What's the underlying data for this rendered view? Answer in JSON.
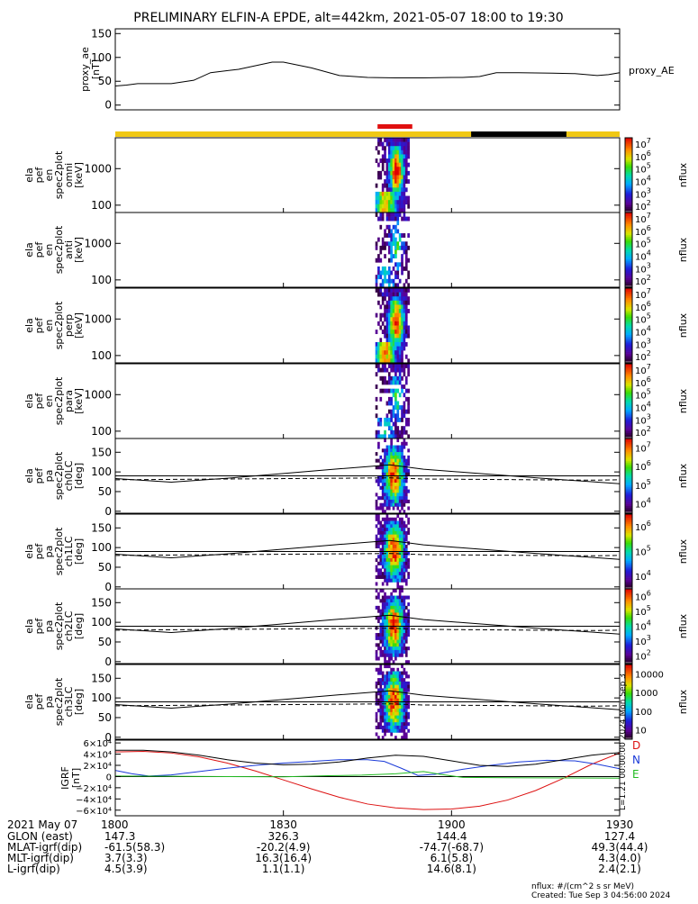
{
  "title": "PRELIMINARY ELFIN-A EPDE, alt=442km, 2021-05-07 18:00 to 19:30",
  "colors": {
    "sun_bar": "#f0c814",
    "shadow_bar": "#000000",
    "science_bar": "#e01010",
    "igrf_d": "#dd1111",
    "igrf_n": "#1a3ad8",
    "igrf_e": "#22bb22"
  },
  "chart_data": [
    {
      "type": "line",
      "name": "proxy_ae",
      "ylabel": [
        "proxy_ae",
        "[nT]"
      ],
      "series_label": "proxy_AE",
      "ylim": [
        -10,
        160
      ],
      "yticks": [
        0,
        50,
        100,
        150
      ],
      "x_minutes": [
        0,
        2,
        4,
        10,
        14,
        17,
        22,
        28,
        30,
        35,
        40,
        45,
        50,
        55,
        60,
        62,
        65,
        68,
        72,
        78,
        82,
        86,
        88,
        90
      ],
      "values": [
        40,
        42,
        45,
        45,
        52,
        68,
        75,
        90,
        90,
        78,
        62,
        58,
        57,
        57,
        58,
        58,
        60,
        68,
        68,
        67,
        66,
        62,
        64,
        68
      ]
    },
    {
      "type": "heatmap",
      "name": "omni-spectrum",
      "ylabel": [
        "ela",
        "pef",
        "en",
        "spec2plot",
        "omni",
        "[keV]"
      ],
      "yscale": "log",
      "ylim": [
        63,
        7000
      ],
      "yticks": [
        100,
        1000
      ],
      "ytick_labels": [
        "100",
        "1000"
      ],
      "time_range_minutes": [
        46.4,
        52.5
      ],
      "colorbar": {
        "label": "nflux",
        "scale": "log",
        "exponents": [
          2,
          3,
          4,
          5,
          6,
          7
        ]
      }
    },
    {
      "type": "heatmap",
      "name": "anti-spectrum",
      "ylabel": [
        "ela",
        "pef",
        "en",
        "spec2plot",
        "anti",
        "[keV]"
      ],
      "yscale": "log",
      "ylim": [
        63,
        7000
      ],
      "yticks": [
        100,
        1000
      ],
      "ytick_labels": [
        "100",
        "1000"
      ],
      "time_range_minutes": [
        46.4,
        52.5
      ],
      "colorbar": {
        "label": "nflux",
        "scale": "log",
        "exponents": [
          2,
          3,
          4,
          5,
          6,
          7
        ]
      }
    },
    {
      "type": "heatmap",
      "name": "perp-spectrum",
      "ylabel": [
        "ela",
        "pef",
        "en",
        "spec2plot",
        "perp",
        "[keV]"
      ],
      "yscale": "log",
      "ylim": [
        63,
        7000
      ],
      "yticks": [
        100,
        1000
      ],
      "ytick_labels": [
        "100",
        "1000"
      ],
      "time_range_minutes": [
        46.4,
        52.5
      ],
      "colorbar": {
        "label": "nflux",
        "scale": "log",
        "exponents": [
          2,
          3,
          4,
          5,
          6,
          7
        ]
      }
    },
    {
      "type": "heatmap",
      "name": "para-spectrum",
      "ylabel": [
        "ela",
        "pef",
        "en",
        "spec2plot",
        "para",
        "[keV]"
      ],
      "yscale": "log",
      "ylim": [
        63,
        7000
      ],
      "yticks": [
        100,
        1000
      ],
      "ytick_labels": [
        "100",
        "1000"
      ],
      "time_range_minutes": [
        46.4,
        52.5
      ],
      "colorbar": {
        "label": "nflux",
        "scale": "log",
        "exponents": [
          2,
          3,
          4,
          5,
          6,
          7
        ]
      }
    },
    {
      "type": "heatmap",
      "name": "ch0-pitch-angle",
      "ylabel": [
        "ela",
        "pef",
        "pa",
        "spec2plot",
        "ch0LC",
        "[deg]"
      ],
      "yscale": "linear",
      "ylim": [
        -5,
        185
      ],
      "yticks": [
        0,
        50,
        100,
        150
      ],
      "time_range_minutes": [
        46.4,
        52.5
      ],
      "colorbar": {
        "label": "nflux",
        "scale": "log",
        "exponents": [
          4,
          5,
          6,
          7
        ]
      }
    },
    {
      "type": "heatmap",
      "name": "ch1-pitch-angle",
      "ylabel": [
        "ela",
        "pef",
        "pa",
        "spec2plot",
        "ch1LC",
        "[deg]"
      ],
      "yscale": "linear",
      "ylim": [
        -5,
        185
      ],
      "yticks": [
        0,
        50,
        100,
        150
      ],
      "time_range_minutes": [
        46.4,
        52.5
      ],
      "colorbar": {
        "label": "nflux",
        "scale": "log",
        "exponents": [
          4,
          5,
          6
        ]
      }
    },
    {
      "type": "heatmap",
      "name": "ch2-pitch-angle",
      "ylabel": [
        "ela",
        "pef",
        "pa",
        "spec2plot",
        "ch2LC",
        "[deg]"
      ],
      "yscale": "linear",
      "ylim": [
        -5,
        185
      ],
      "yticks": [
        0,
        50,
        100,
        150
      ],
      "time_range_minutes": [
        46.4,
        52.5
      ],
      "colorbar": {
        "label": "nflux",
        "scale": "log",
        "exponents": [
          2,
          3,
          4,
          5,
          6
        ]
      }
    },
    {
      "type": "heatmap",
      "name": "ch3-pitch-angle",
      "ylabel": [
        "ela",
        "pef",
        "pa",
        "spec2plot",
        "ch3LC",
        "[deg]"
      ],
      "yscale": "linear",
      "ylim": [
        -5,
        185
      ],
      "yticks": [
        0,
        50,
        100,
        150
      ],
      "time_range_minutes": [
        46.4,
        52.5
      ],
      "colorbar": {
        "label": "nflux",
        "scale": "linear",
        "tick_labels": [
          "10",
          "100",
          "1000",
          "10000"
        ]
      }
    },
    {
      "type": "line",
      "name": "igrf",
      "ylabel": [
        "IGRF",
        "[nT]"
      ],
      "ylim": [
        -70000,
        65000
      ],
      "yticks": [
        60000,
        40000,
        20000,
        0,
        -20000,
        -40000,
        -60000
      ],
      "ytick_labels": [
        "6×10⁴",
        "4×10⁴",
        "2×10⁴",
        "0",
        "−2×10⁴",
        "−4×10⁴",
        "−6×10⁴"
      ],
      "series": [
        {
          "name": "D",
          "color": "#dd1111",
          "x": [
            0,
            5,
            10,
            15,
            20,
            25,
            30,
            35,
            40,
            45,
            50,
            55,
            60,
            65,
            70,
            75,
            80,
            85,
            90
          ],
          "values": [
            44000,
            45000,
            42000,
            35000,
            24000,
            10000,
            -6000,
            -22000,
            -37000,
            -49000,
            -56000,
            -59000,
            -58000,
            -53000,
            -42000,
            -25000,
            -3000,
            22000,
            42000
          ]
        },
        {
          "name": "N",
          "color": "#1a3ad8",
          "x": [
            0,
            3,
            6,
            10,
            15,
            20,
            25,
            30,
            35,
            40,
            45,
            48,
            51,
            54,
            57,
            62,
            67,
            72,
            77,
            82,
            86,
            90
          ],
          "values": [
            11000,
            5000,
            1000,
            3000,
            9000,
            15000,
            20000,
            24000,
            27000,
            30000,
            30000,
            27000,
            15000,
            2000,
            4000,
            13000,
            20000,
            26000,
            29000,
            28000,
            22000,
            14000
          ]
        },
        {
          "name": "E",
          "color": "#22bb22",
          "x": [
            0,
            10,
            20,
            30,
            38,
            44,
            50,
            55,
            58,
            62,
            70,
            80,
            90
          ],
          "values": [
            1000,
            600,
            0,
            -500,
            1500,
            2500,
            5000,
            9000,
            4000,
            -1500,
            -2000,
            -2500,
            -3000
          ]
        },
        {
          "name": "total",
          "color": "#000000",
          "x": [
            0,
            5,
            10,
            15,
            20,
            25,
            30,
            35,
            40,
            45,
            50,
            55,
            60,
            65,
            70,
            75,
            80,
            85,
            90
          ],
          "values": [
            47000,
            47000,
            44000,
            38000,
            30000,
            24000,
            21000,
            22000,
            26000,
            33000,
            38000,
            36000,
            28000,
            20000,
            18000,
            22000,
            30000,
            38000,
            43000
          ]
        }
      ],
      "side_labels": [
        "D",
        "N",
        "E"
      ],
      "side_note": "L=1.21 00:00:00 2024 Mon Sep 3"
    }
  ],
  "time_axis": {
    "date": "2021 May 07",
    "ticks": [
      {
        "minute": 0,
        "label": "1800"
      },
      {
        "minute": 30,
        "label": "1830"
      },
      {
        "minute": 60,
        "label": "1900"
      },
      {
        "minute": 90,
        "label": "1930"
      }
    ]
  },
  "ephemeris": {
    "rows": [
      {
        "label": "GLON (east)",
        "values": [
          "147.3",
          "326.3",
          "144.4",
          "127.4"
        ]
      },
      {
        "label": "MLAT-igrf(dip)",
        "values": [
          "-61.5(58.3)",
          "-20.2(4.9)",
          "-74.7(-68.7)",
          "49.3(44.4)"
        ]
      },
      {
        "label": "MLT-igrf(dip)",
        "values": [
          "3.7(3.3)",
          "16.3(16.4)",
          "6.1(5.8)",
          "4.3(4.0)"
        ]
      },
      {
        "label": "L-igrf(dip)",
        "values": [
          "4.5(3.9)",
          "1.1(1.1)",
          "14.6(8.1)",
          "2.4(2.1)"
        ]
      }
    ]
  },
  "footer": {
    "units": "nflux: #/(cm^2 s sr MeV)",
    "created": "Created: Tue Sep  3 04:56:00 2024"
  },
  "status_bars": {
    "sun_minutes": [
      0,
      90
    ],
    "shadow_minutes": [
      63.5,
      80.5
    ],
    "science_minutes": [
      46.8,
      53
    ]
  },
  "loss_cone": {
    "x": [
      0,
      10,
      20,
      30,
      40,
      49,
      55,
      65,
      75,
      85,
      90
    ],
    "solid": [
      83,
      74,
      84,
      96,
      108,
      118,
      107,
      96,
      85,
      75,
      70
    ],
    "dashed": [
      80,
      81,
      82,
      83,
      84,
      85,
      82,
      81,
      80,
      79,
      80
    ],
    "reference": 90
  }
}
